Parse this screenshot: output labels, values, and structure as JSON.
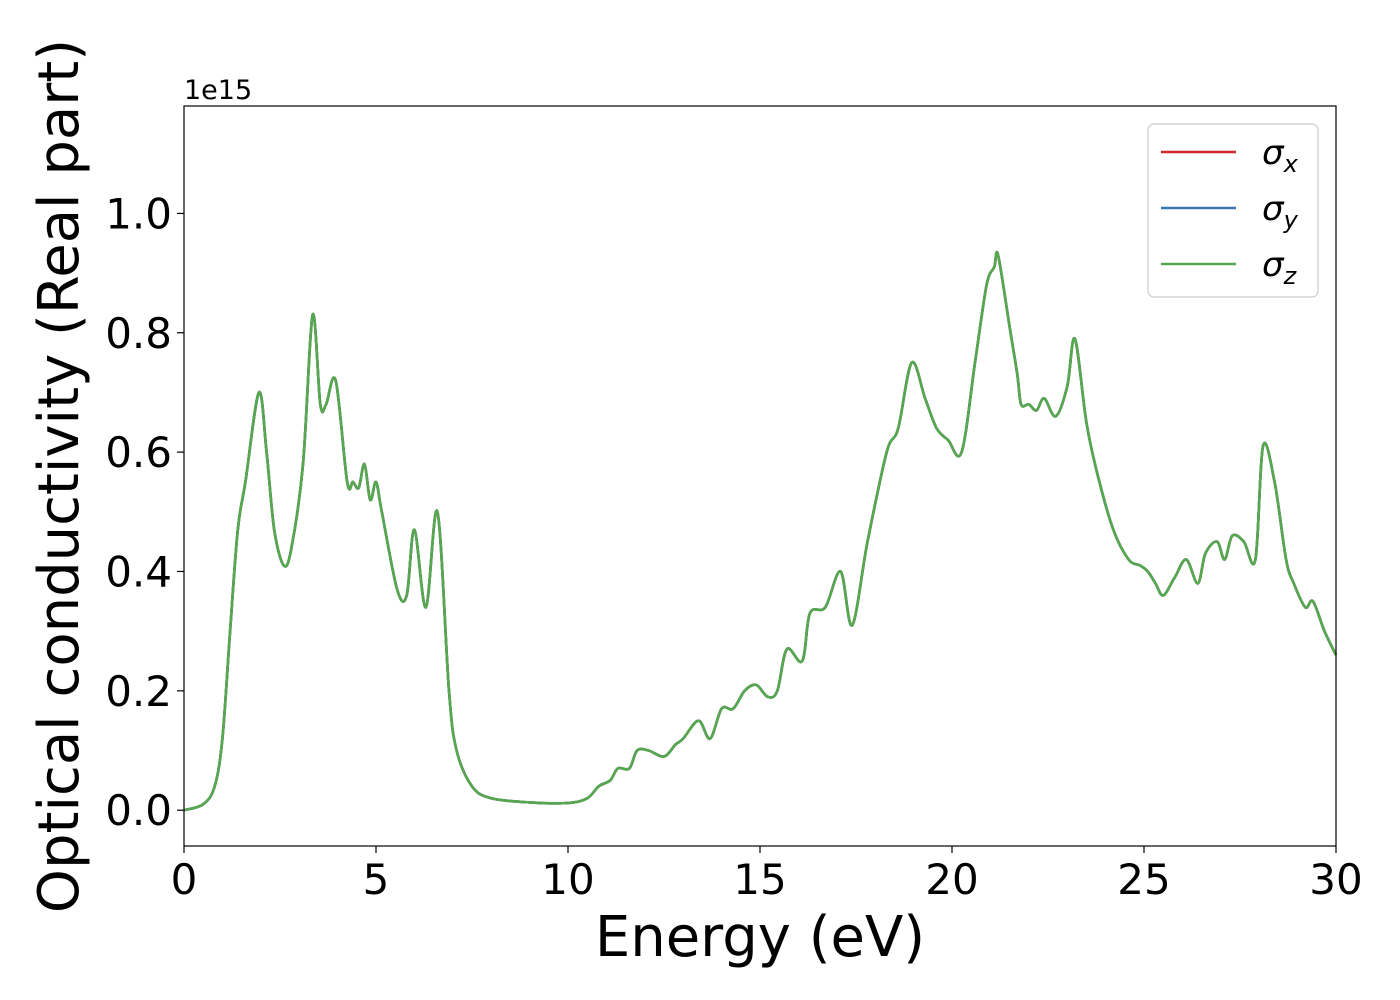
{
  "chart_data": {
    "type": "line",
    "xlabel": "Energy (eV)",
    "ylabel": "Optical conductivity (Real part)",
    "y_offset_label": "1e15",
    "xlim": [
      0,
      30
    ],
    "ylim": [
      -0.06,
      1.18
    ],
    "x_ticks": [
      0,
      5,
      10,
      15,
      20,
      25,
      30
    ],
    "x_tick_labels": [
      "0",
      "5",
      "10",
      "15",
      "20",
      "25",
      "30"
    ],
    "y_ticks": [
      0.0,
      0.2,
      0.4,
      0.6,
      0.8,
      1.0
    ],
    "y_tick_labels": [
      "0.0",
      "0.2",
      "0.4",
      "0.6",
      "0.8",
      "1.0"
    ],
    "grid": false,
    "legend_position": "top-right",
    "series": [
      {
        "name": "σx",
        "symbol": "σ",
        "subscript": "x",
        "color": "#d62728"
      },
      {
        "name": "σy",
        "symbol": "σ",
        "subscript": "y",
        "color": "#3a78b4"
      },
      {
        "name": "σz",
        "symbol": "σ",
        "subscript": "z",
        "color": "#55a84e"
      }
    ],
    "x": [
      0,
      0.5,
      0.8,
      1.0,
      1.2,
      1.4,
      1.6,
      1.95,
      2.15,
      2.35,
      2.6,
      2.8,
      3.1,
      3.35,
      3.55,
      3.7,
      3.95,
      4.25,
      4.4,
      4.55,
      4.7,
      4.85,
      5.0,
      5.15,
      5.55,
      5.8,
      6.0,
      6.3,
      6.6,
      6.9,
      7.1,
      7.5,
      8.0,
      9.0,
      10.0,
      10.5,
      10.8,
      11.1,
      11.3,
      11.6,
      11.8,
      12.1,
      12.5,
      12.8,
      13.0,
      13.4,
      13.7,
      14.0,
      14.3,
      14.6,
      14.9,
      15.2,
      15.45,
      15.7,
      16.1,
      16.3,
      16.7,
      17.1,
      17.4,
      17.8,
      18.3,
      18.6,
      18.95,
      19.3,
      19.6,
      19.9,
      20.25,
      20.6,
      20.9,
      21.1,
      21.2,
      21.5,
      21.7,
      21.8,
      22.0,
      22.2,
      22.4,
      22.7,
      23.0,
      23.2,
      23.5,
      23.8,
      24.2,
      24.6,
      24.9,
      25.1,
      25.3,
      25.5,
      25.8,
      26.1,
      26.4,
      26.6,
      26.9,
      27.1,
      27.3,
      27.6,
      27.9,
      28.1,
      28.4,
      28.7,
      28.9,
      29.2,
      29.4,
      29.7,
      30.0
    ],
    "y": [
      0.0,
      0.01,
      0.04,
      0.12,
      0.3,
      0.47,
      0.55,
      0.7,
      0.6,
      0.47,
      0.41,
      0.44,
      0.58,
      0.83,
      0.68,
      0.68,
      0.72,
      0.55,
      0.55,
      0.54,
      0.58,
      0.52,
      0.55,
      0.5,
      0.37,
      0.36,
      0.47,
      0.34,
      0.5,
      0.2,
      0.1,
      0.04,
      0.02,
      0.013,
      0.012,
      0.02,
      0.04,
      0.05,
      0.07,
      0.07,
      0.1,
      0.1,
      0.09,
      0.11,
      0.12,
      0.15,
      0.12,
      0.17,
      0.17,
      0.2,
      0.21,
      0.19,
      0.2,
      0.27,
      0.25,
      0.33,
      0.34,
      0.4,
      0.31,
      0.45,
      0.6,
      0.64,
      0.75,
      0.69,
      0.64,
      0.62,
      0.6,
      0.75,
      0.88,
      0.91,
      0.93,
      0.81,
      0.73,
      0.68,
      0.68,
      0.67,
      0.69,
      0.66,
      0.71,
      0.79,
      0.65,
      0.56,
      0.47,
      0.42,
      0.41,
      0.4,
      0.38,
      0.36,
      0.39,
      0.42,
      0.38,
      0.43,
      0.45,
      0.42,
      0.46,
      0.45,
      0.42,
      0.61,
      0.55,
      0.42,
      0.38,
      0.34,
      0.35,
      0.3,
      0.26
    ]
  }
}
